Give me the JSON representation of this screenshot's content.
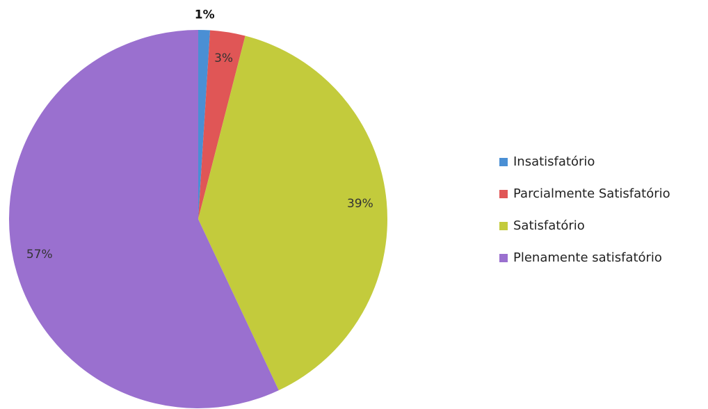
{
  "chart_data": {
    "type": "pie",
    "categories": [
      "Insatisfatório",
      "Parcialmente Satisfatório",
      "Satisfatório",
      "Plenamente satisfatório"
    ],
    "values": [
      1,
      3,
      39,
      57
    ],
    "value_labels": [
      "1%",
      "3%",
      "39%",
      "57%"
    ],
    "colors": [
      "#4a8fd4",
      "#e05656",
      "#c3cb3c",
      "#9a70cf"
    ],
    "legend": "right"
  }
}
